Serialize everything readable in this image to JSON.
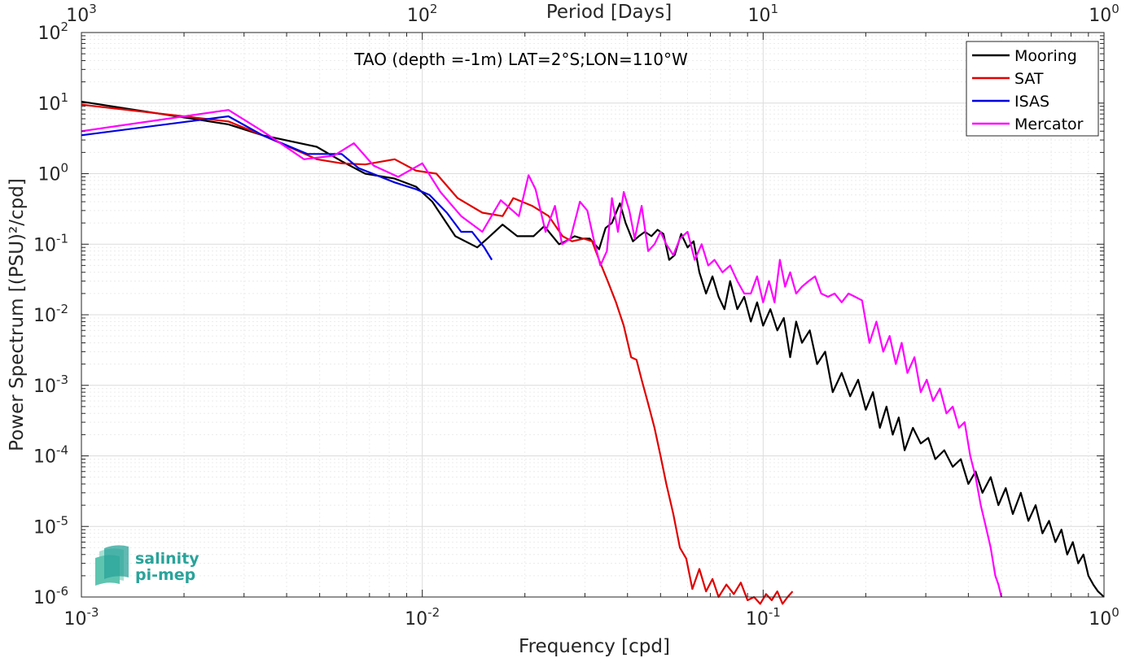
{
  "chart_data": {
    "type": "line",
    "title": "TAO (depth =-1m) LAT=2°S;LON=110°W",
    "xlabel": "Frequency [cpd]",
    "ylabel": "Power Spectrum [(PSU)²/cpd]",
    "x2label": "Period [Days]",
    "xscale": "log",
    "yscale": "log",
    "xlim": [
      0.001,
      1
    ],
    "ylim": [
      1e-06,
      100
    ],
    "grid": true,
    "legend_position": "top-right",
    "x_ticks": [
      {
        "value": 0.001,
        "base": "10",
        "exp": "-3"
      },
      {
        "value": 0.01,
        "base": "10",
        "exp": "-2"
      },
      {
        "value": 0.1,
        "base": "10",
        "exp": "-1"
      },
      {
        "value": 1,
        "base": "10",
        "exp": "0"
      }
    ],
    "top_ticks": [
      {
        "value": 0.001,
        "base": "10",
        "exp": "3"
      },
      {
        "value": 0.01,
        "base": "10",
        "exp": "2"
      },
      {
        "value": 0.1,
        "base": "10",
        "exp": "1"
      },
      {
        "value": 1,
        "base": "10",
        "exp": "0"
      }
    ],
    "y_ticks": [
      {
        "value": 1e-06,
        "base": "10",
        "exp": "-6"
      },
      {
        "value": 1e-05,
        "base": "10",
        "exp": "-5"
      },
      {
        "value": 0.0001,
        "base": "10",
        "exp": "-4"
      },
      {
        "value": 0.001,
        "base": "10",
        "exp": "-3"
      },
      {
        "value": 0.01,
        "base": "10",
        "exp": "-2"
      },
      {
        "value": 0.1,
        "base": "10",
        "exp": "-1"
      },
      {
        "value": 1,
        "base": "10",
        "exp": "0"
      },
      {
        "value": 10,
        "base": "10",
        "exp": "1"
      },
      {
        "value": 100,
        "base": "10",
        "exp": "2"
      }
    ],
    "series": [
      {
        "name": "Mooring",
        "color": "#000000",
        "x": [
          0.001,
          0.0027,
          0.0034,
          0.0049,
          0.0058,
          0.0068,
          0.0083,
          0.0096,
          0.0107,
          0.0125,
          0.0145,
          0.0155,
          0.0172,
          0.019,
          0.0212,
          0.0228,
          0.0252,
          0.0263,
          0.028,
          0.0295,
          0.031,
          0.033,
          0.0345,
          0.036,
          0.038,
          0.0395,
          0.0415,
          0.0432,
          0.045,
          0.047,
          0.049,
          0.051,
          0.053,
          0.055,
          0.0575,
          0.06,
          0.0625,
          0.065,
          0.068,
          0.071,
          0.074,
          0.077,
          0.08,
          0.084,
          0.088,
          0.092,
          0.096,
          0.1,
          0.105,
          0.11,
          0.115,
          0.12,
          0.125,
          0.13,
          0.137,
          0.144,
          0.152,
          0.16,
          0.17,
          0.18,
          0.19,
          0.2,
          0.21,
          0.22,
          0.23,
          0.24,
          0.25,
          0.26,
          0.275,
          0.29,
          0.305,
          0.32,
          0.34,
          0.36,
          0.38,
          0.4,
          0.42,
          0.44,
          0.465,
          0.49,
          0.515,
          0.54,
          0.57,
          0.6,
          0.63,
          0.66,
          0.69,
          0.72,
          0.75,
          0.78,
          0.81,
          0.84,
          0.87,
          0.9,
          0.93,
          0.96,
          1.0
        ],
        "y": [
          10.5,
          5.0,
          3.5,
          2.4,
          1.5,
          1.0,
          0.85,
          0.65,
          0.4,
          0.13,
          0.09,
          0.12,
          0.19,
          0.13,
          0.13,
          0.18,
          0.1,
          0.11,
          0.13,
          0.12,
          0.12,
          0.085,
          0.17,
          0.2,
          0.38,
          0.2,
          0.11,
          0.13,
          0.15,
          0.13,
          0.16,
          0.14,
          0.06,
          0.07,
          0.14,
          0.09,
          0.11,
          0.04,
          0.02,
          0.035,
          0.018,
          0.012,
          0.03,
          0.012,
          0.018,
          0.008,
          0.015,
          0.007,
          0.012,
          0.006,
          0.009,
          0.0025,
          0.008,
          0.004,
          0.006,
          0.002,
          0.003,
          0.0008,
          0.0015,
          0.0007,
          0.0012,
          0.00045,
          0.0008,
          0.00025,
          0.0005,
          0.0002,
          0.00035,
          0.00012,
          0.00025,
          0.00015,
          0.00018,
          9e-05,
          0.00012,
          7e-05,
          9e-05,
          4e-05,
          6e-05,
          3e-05,
          5e-05,
          2e-05,
          3.5e-05,
          1.5e-05,
          3e-05,
          1.2e-05,
          2e-05,
          8e-06,
          1.2e-05,
          6e-06,
          9e-06,
          4e-06,
          6e-06,
          3e-06,
          4e-06,
          2e-06,
          1.5e-06,
          1.2e-06,
          1e-06
        ]
      },
      {
        "name": "SAT",
        "color": "#e00000",
        "x": [
          0.001,
          0.0027,
          0.0034,
          0.0049,
          0.0058,
          0.0068,
          0.0083,
          0.0096,
          0.011,
          0.0127,
          0.015,
          0.0172,
          0.0185,
          0.021,
          0.0235,
          0.0258,
          0.0275,
          0.0298,
          0.0315,
          0.033,
          0.035,
          0.037,
          0.039,
          0.041,
          0.0425,
          0.044,
          0.046,
          0.048,
          0.05,
          0.052,
          0.0545,
          0.057,
          0.0595,
          0.062,
          0.065,
          0.068,
          0.071,
          0.074,
          0.078,
          0.082,
          0.086,
          0.09,
          0.094,
          0.098,
          0.102,
          0.106,
          0.11,
          0.114,
          0.118,
          0.122
        ],
        "y": [
          9.5,
          5.5,
          3.5,
          1.6,
          1.4,
          1.35,
          1.6,
          1.1,
          1.0,
          0.45,
          0.28,
          0.25,
          0.45,
          0.35,
          0.25,
          0.13,
          0.11,
          0.12,
          0.11,
          0.06,
          0.03,
          0.015,
          0.007,
          0.0025,
          0.0023,
          0.0012,
          0.00055,
          0.00025,
          0.0001,
          4e-05,
          1.5e-05,
          5e-06,
          3.5e-06,
          1.3e-06,
          2.5e-06,
          1.2e-06,
          1.8e-06,
          1e-06,
          1.5e-06,
          1.1e-06,
          1.6e-06,
          9e-07,
          1e-06,
          8e-07,
          1.1e-06,
          9e-07,
          1.2e-06,
          8e-07,
          1e-06,
          1.2e-06
        ]
      },
      {
        "name": "ISAS",
        "color": "#0000e0",
        "x": [
          0.001,
          0.0027,
          0.0034,
          0.0046,
          0.0058,
          0.0065,
          0.0083,
          0.0096,
          0.0105,
          0.0118,
          0.013,
          0.014,
          0.0152,
          0.016
        ],
        "y": [
          3.5,
          6.5,
          3.5,
          1.9,
          1.9,
          1.2,
          0.75,
          0.6,
          0.5,
          0.28,
          0.15,
          0.15,
          0.09,
          0.06
        ]
      },
      {
        "name": "Mercator",
        "color": "#ff00ff",
        "x": [
          0.001,
          0.0027,
          0.0034,
          0.0045,
          0.0055,
          0.0063,
          0.0072,
          0.0085,
          0.01,
          0.0113,
          0.013,
          0.015,
          0.017,
          0.0192,
          0.0205,
          0.0215,
          0.023,
          0.0245,
          0.0257,
          0.0272,
          0.029,
          0.0305,
          0.0318,
          0.0333,
          0.0348,
          0.036,
          0.0375,
          0.039,
          0.0405,
          0.042,
          0.044,
          0.046,
          0.048,
          0.05,
          0.052,
          0.0545,
          0.057,
          0.06,
          0.063,
          0.066,
          0.069,
          0.072,
          0.076,
          0.08,
          0.084,
          0.088,
          0.092,
          0.096,
          0.1,
          0.104,
          0.108,
          0.112,
          0.116,
          0.12,
          0.125,
          0.13,
          0.136,
          0.142,
          0.148,
          0.155,
          0.162,
          0.17,
          0.178,
          0.186,
          0.195,
          0.205,
          0.215,
          0.225,
          0.235,
          0.245,
          0.255,
          0.265,
          0.278,
          0.29,
          0.302,
          0.315,
          0.33,
          0.345,
          0.36,
          0.375,
          0.39,
          0.405,
          0.42,
          0.435,
          0.45,
          0.465,
          0.48,
          0.49,
          0.5
        ],
        "y": [
          4.0,
          8.0,
          4.0,
          1.6,
          1.8,
          2.7,
          1.3,
          0.9,
          1.4,
          0.55,
          0.25,
          0.15,
          0.42,
          0.25,
          0.95,
          0.6,
          0.15,
          0.35,
          0.1,
          0.12,
          0.4,
          0.3,
          0.12,
          0.05,
          0.08,
          0.45,
          0.15,
          0.55,
          0.3,
          0.12,
          0.35,
          0.08,
          0.1,
          0.15,
          0.1,
          0.07,
          0.12,
          0.15,
          0.06,
          0.1,
          0.05,
          0.06,
          0.04,
          0.05,
          0.03,
          0.02,
          0.02,
          0.035,
          0.015,
          0.03,
          0.015,
          0.06,
          0.025,
          0.04,
          0.02,
          0.025,
          0.03,
          0.035,
          0.02,
          0.018,
          0.02,
          0.015,
          0.02,
          0.018,
          0.016,
          0.004,
          0.008,
          0.003,
          0.005,
          0.002,
          0.004,
          0.0015,
          0.0025,
          0.0008,
          0.0012,
          0.0006,
          0.0009,
          0.0004,
          0.0005,
          0.00025,
          0.0003,
          0.0001,
          5e-05,
          2e-05,
          1e-05,
          5e-06,
          2e-06,
          1.5e-06,
          1e-06
        ]
      }
    ]
  },
  "logo": {
    "line1": "salinity",
    "line2": "pi-mep"
  }
}
